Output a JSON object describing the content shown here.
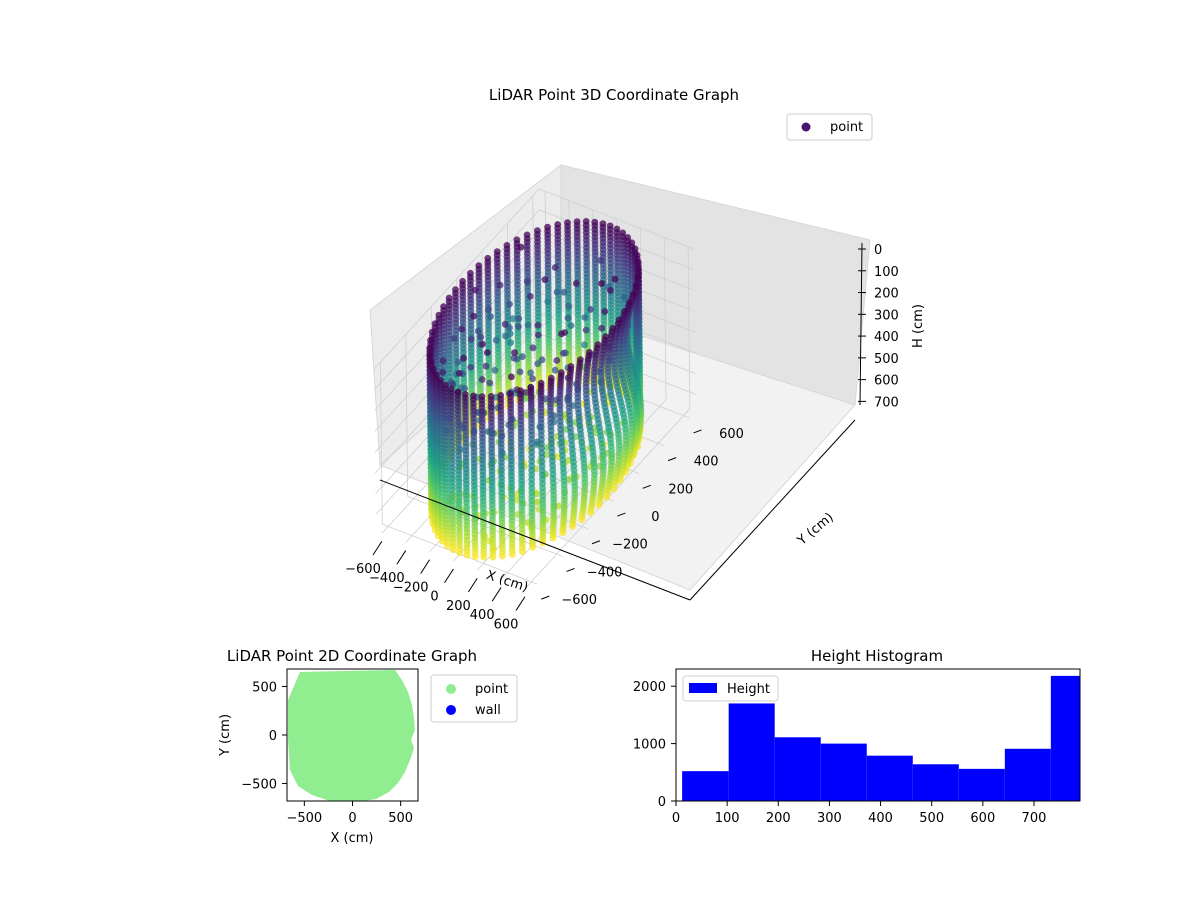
{
  "chart_data": [
    {
      "type": "scatter",
      "projection": "3d",
      "title": "LiDAR Point 3D Coordinate Graph",
      "xlabel": "X (cm)",
      "ylabel": "Y (cm)",
      "zlabel": "H (cm)",
      "xticks": [
        "−600",
        "−400",
        "−200",
        "0",
        "200",
        "400",
        "600"
      ],
      "yticks": [
        "−600",
        "−400",
        "−200",
        "0",
        "200",
        "400",
        "600"
      ],
      "zticks": [
        "0",
        "100",
        "200",
        "300",
        "400",
        "500",
        "600",
        "700"
      ],
      "xlim": [
        -650,
        650
      ],
      "ylim": [
        -650,
        650
      ],
      "zlim": [
        0,
        780
      ],
      "z_inverted": true,
      "colormap": "viridis",
      "grid": true,
      "legend": {
        "placement": "upper right",
        "entries": [
          {
            "label": "point",
            "color": "#46166c"
          }
        ]
      },
      "description_series": {
        "name": "point",
        "shape": "cylindrical wall of scan points, radius ~600 cm, heights 0–780 cm, with interior points near floor and ceiling"
      }
    },
    {
      "type": "scatter",
      "title": "LiDAR Point 2D Coordinate Graph",
      "xlabel": "X (cm)",
      "ylabel": "Y (cm)",
      "xticks": [
        "−500",
        "0",
        "500"
      ],
      "yticks": [
        "−500",
        "0",
        "500"
      ],
      "xlim": [
        -680,
        680
      ],
      "ylim": [
        -680,
        680
      ],
      "legend": {
        "placement": "outside right",
        "entries": [
          {
            "label": "point",
            "color": "#90ee90"
          },
          {
            "label": "wall",
            "color": "#0000ff"
          }
        ]
      },
      "series": [
        {
          "name": "point",
          "color": "#90ee90",
          "shape": "filled disc of radius ~640 cm"
        },
        {
          "name": "wall",
          "color": "#0000ff"
        }
      ]
    },
    {
      "type": "bar",
      "subtype": "histogram",
      "title": "Height Histogram",
      "xlabel": "",
      "ylabel": "",
      "xticks": [
        "0",
        "100",
        "200",
        "300",
        "400",
        "500",
        "600",
        "700"
      ],
      "yticks": [
        "0",
        "1000",
        "2000"
      ],
      "xlim": [
        0,
        790
      ],
      "ylim": [
        0,
        2300
      ],
      "legend": {
        "placement": "upper left",
        "entries": [
          {
            "label": "Height",
            "color": "#0000ff"
          }
        ]
      },
      "bin_edges": [
        12,
        103,
        193,
        283,
        373,
        463,
        553,
        643,
        733,
        790
      ],
      "values": [
        520,
        1700,
        1110,
        1000,
        790,
        640,
        560,
        910,
        2180
      ],
      "color": "#0000ff"
    }
  ]
}
